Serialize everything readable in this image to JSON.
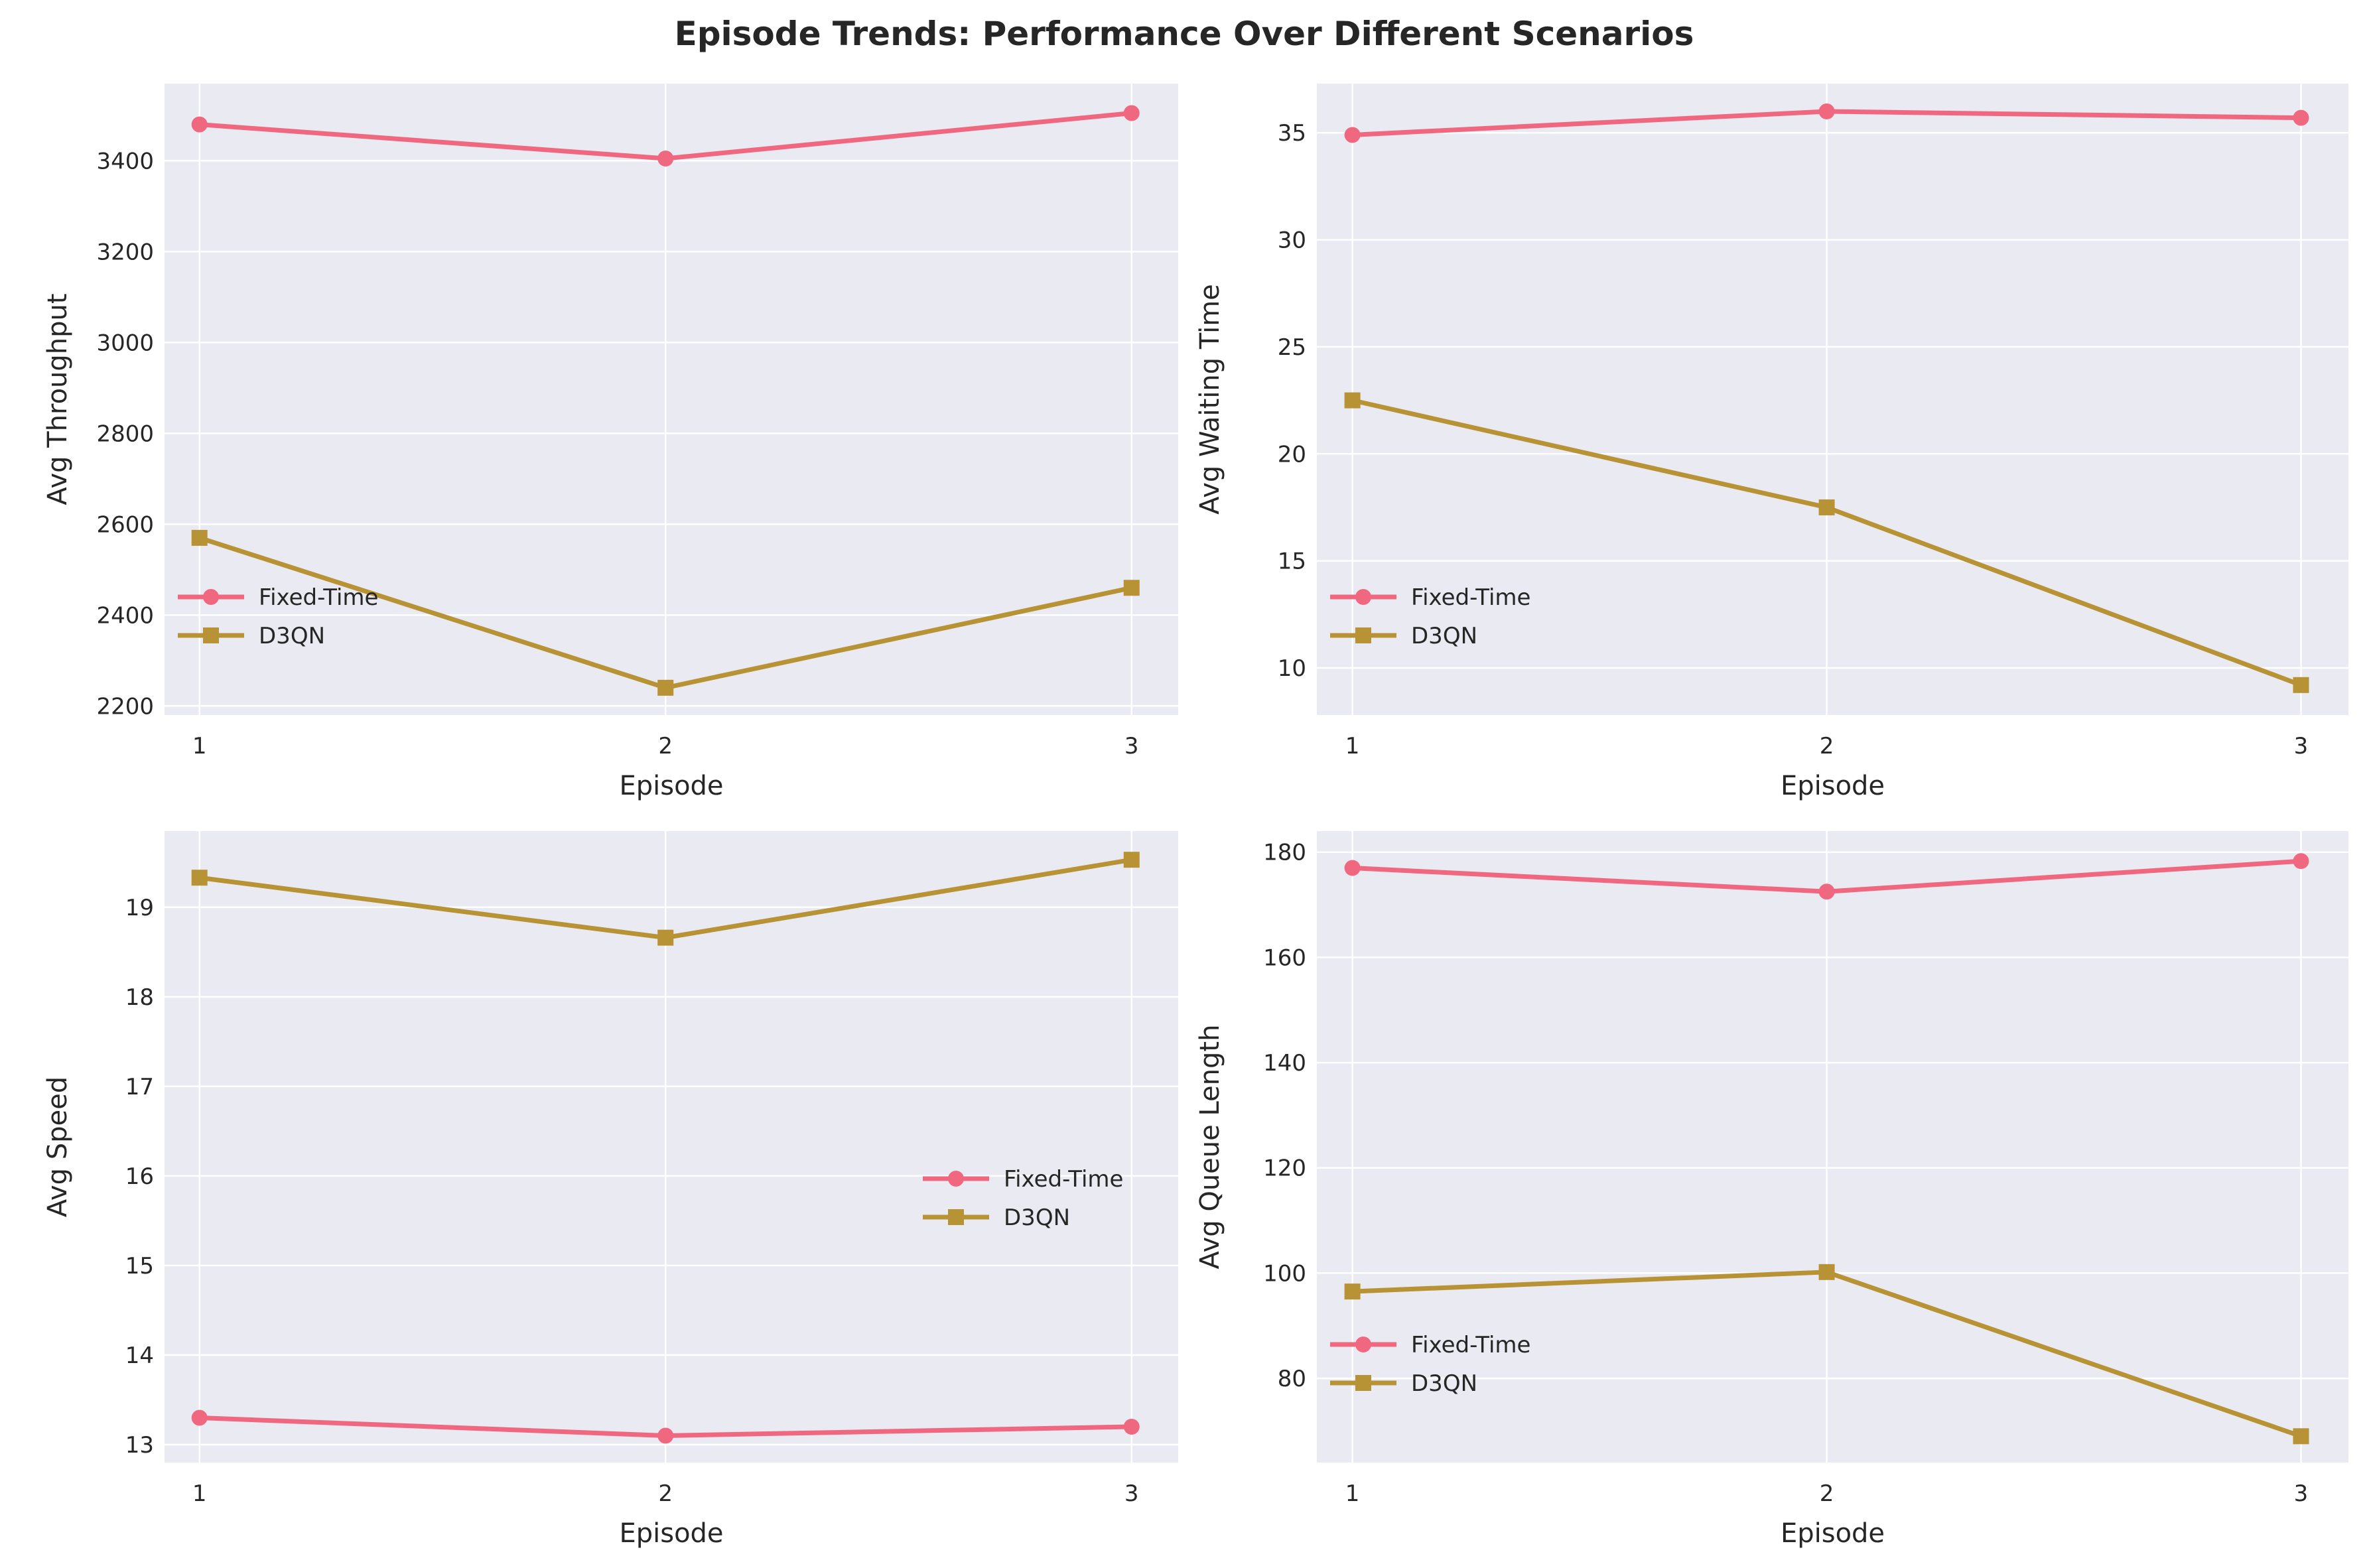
{
  "figure": {
    "title": "Episode Trends: Performance Over Different Scenarios"
  },
  "styles": {
    "axes_bg": "#EAEAF2",
    "grid_color": "#FFFFFF",
    "series_colors": {
      "Fixed-Time": "#F0687F",
      "D3QN": "#B89335"
    }
  },
  "chart_data": [
    {
      "type": "line",
      "xlabel": "Episode",
      "ylabel": "Avg Throughput",
      "x": [
        1,
        2,
        3
      ],
      "xlim": [
        0.925,
        3.1
      ],
      "ylim": [
        2180,
        3570
      ],
      "yticks": [
        2200,
        2400,
        2600,
        2800,
        3000,
        3200,
        3400
      ],
      "grid": true,
      "legend": "lower-left",
      "series": [
        {
          "name": "Fixed-Time",
          "marker": "circle",
          "values": [
            3480,
            3405,
            3505
          ]
        },
        {
          "name": "D3QN",
          "marker": "square",
          "values": [
            2570,
            2240,
            2460
          ]
        }
      ]
    },
    {
      "type": "line",
      "xlabel": "Episode",
      "ylabel": "Avg Waiting Time",
      "x": [
        1,
        2,
        3
      ],
      "xlim": [
        0.925,
        3.1
      ],
      "ylim": [
        7.8,
        37.3
      ],
      "yticks": [
        10,
        15,
        20,
        25,
        30,
        35
      ],
      "grid": true,
      "legend": "lower-left",
      "series": [
        {
          "name": "Fixed-Time",
          "marker": "circle",
          "values": [
            34.9,
            36.0,
            35.7
          ]
        },
        {
          "name": "D3QN",
          "marker": "square",
          "values": [
            22.5,
            17.5,
            9.2
          ]
        }
      ]
    },
    {
      "type": "line",
      "xlabel": "Episode",
      "ylabel": "Avg Speed",
      "x": [
        1,
        2,
        3
      ],
      "xlim": [
        0.925,
        3.1
      ],
      "ylim": [
        12.8,
        19.85
      ],
      "yticks": [
        13,
        14,
        15,
        16,
        17,
        18,
        19
      ],
      "grid": true,
      "legend": "center-right",
      "series": [
        {
          "name": "Fixed-Time",
          "marker": "circle",
          "values": [
            13.3,
            13.1,
            13.2
          ]
        },
        {
          "name": "D3QN",
          "marker": "square",
          "values": [
            19.33,
            18.66,
            19.53
          ]
        }
      ]
    },
    {
      "type": "line",
      "xlabel": "Episode",
      "ylabel": "Avg Queue Length",
      "x": [
        1,
        2,
        3
      ],
      "xlim": [
        0.925,
        3.1
      ],
      "ylim": [
        64,
        184
      ],
      "yticks": [
        80,
        100,
        120,
        140,
        160,
        180
      ],
      "grid": true,
      "legend": "lower-left",
      "series": [
        {
          "name": "Fixed-Time",
          "marker": "circle",
          "values": [
            177.0,
            172.5,
            178.3
          ]
        },
        {
          "name": "D3QN",
          "marker": "square",
          "values": [
            96.5,
            100.2,
            69.0
          ]
        }
      ]
    }
  ]
}
